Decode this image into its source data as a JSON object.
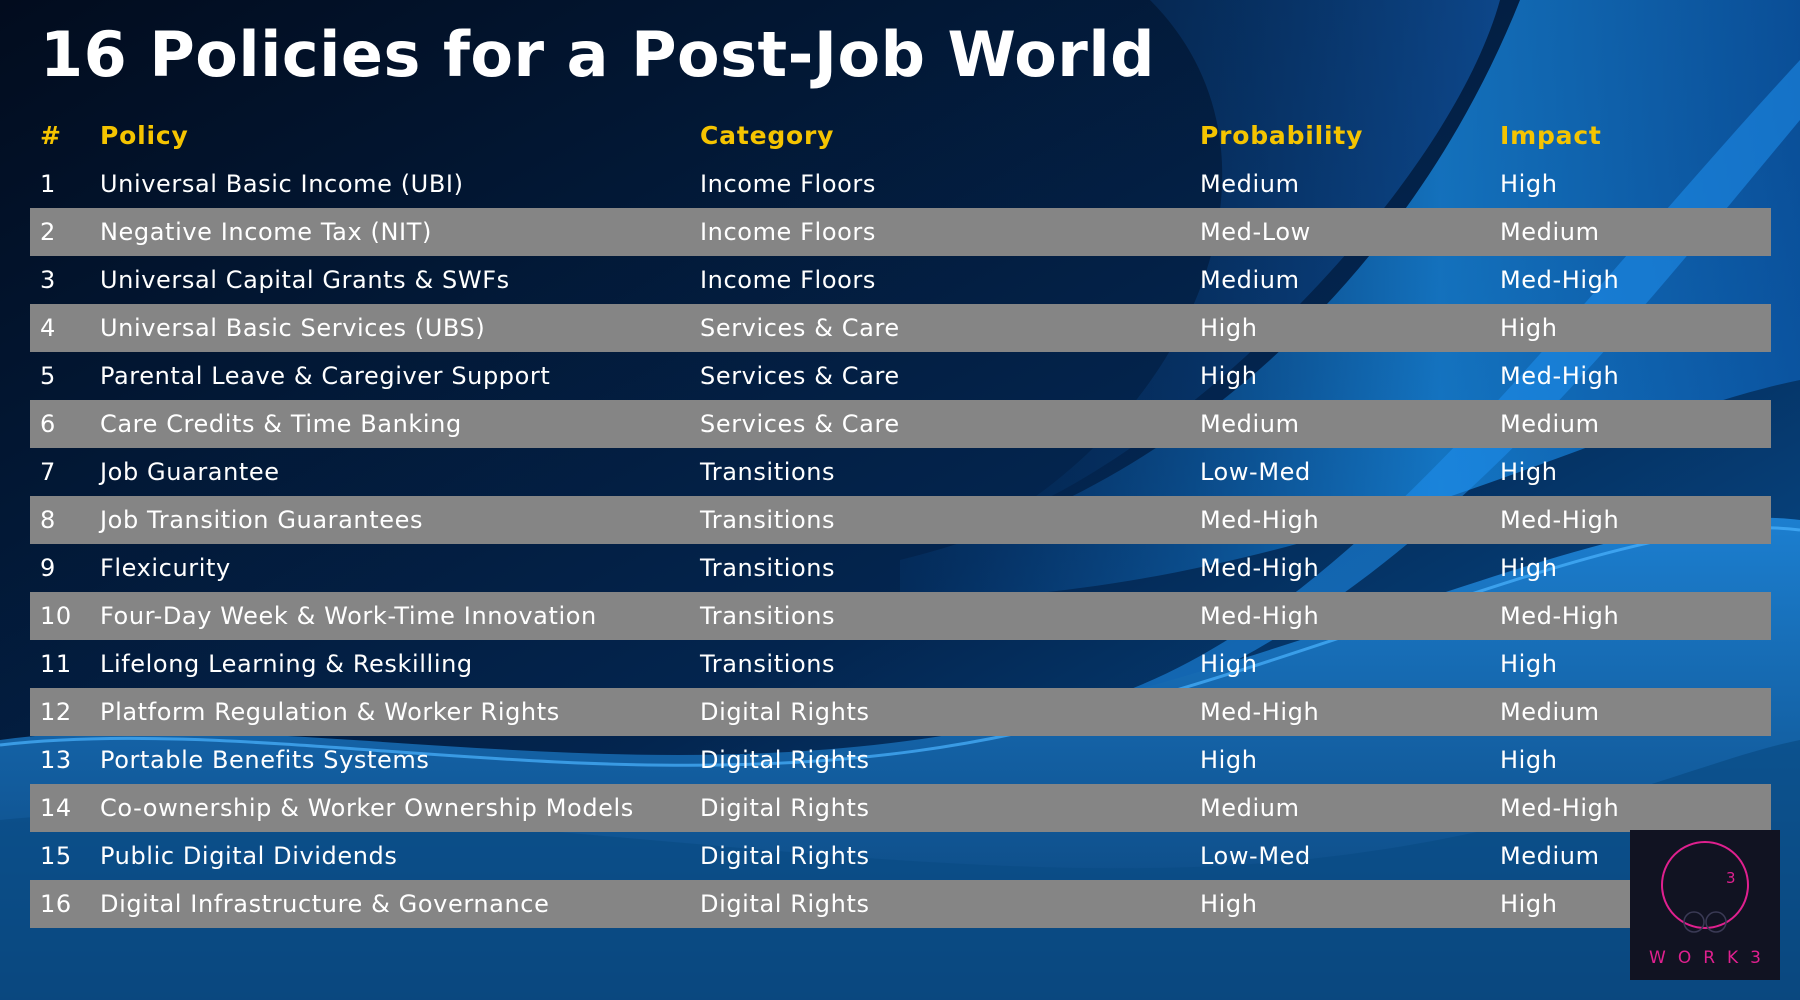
{
  "title": "16 Policies for a Post-Job World",
  "colors": {
    "header": "#f5c400",
    "row_alt": "#858585",
    "text": "#ffffff",
    "logo_accent": "#e0208f"
  },
  "table": {
    "headers": {
      "num": "#",
      "policy": "Policy",
      "category": "Category",
      "probability": "Probability",
      "impact": "Impact"
    },
    "rows": [
      {
        "num": "1",
        "policy": "Universal Basic Income (UBI)",
        "category": "Income Floors",
        "probability": "Medium",
        "impact": "High"
      },
      {
        "num": "2",
        "policy": "Negative Income Tax (NIT)",
        "category": "Income Floors",
        "probability": "Med-Low",
        "impact": "Medium"
      },
      {
        "num": "3",
        "policy": "Universal Capital Grants & SWFs",
        "category": "Income Floors",
        "probability": "Medium",
        "impact": "Med-High"
      },
      {
        "num": "4",
        "policy": "Universal Basic Services (UBS)",
        "category": "Services & Care",
        "probability": "High",
        "impact": "High"
      },
      {
        "num": "5",
        "policy": "Parental Leave & Caregiver Support",
        "category": "Services & Care",
        "probability": "High",
        "impact": "Med-High"
      },
      {
        "num": "6",
        "policy": "Care Credits & Time Banking",
        "category": "Services & Care",
        "probability": "Medium",
        "impact": "Medium"
      },
      {
        "num": "7",
        "policy": "Job Guarantee",
        "category": "Transitions",
        "probability": "Low-Med",
        "impact": "High"
      },
      {
        "num": "8",
        "policy": "Job Transition Guarantees",
        "category": "Transitions",
        "probability": "Med-High",
        "impact": "Med-High"
      },
      {
        "num": "9",
        "policy": "Flexicurity",
        "category": "Transitions",
        "probability": "Med-High",
        "impact": "High"
      },
      {
        "num": "10",
        "policy": "Four-Day Week & Work-Time Innovation",
        "category": "Transitions",
        "probability": "Med-High",
        "impact": "Med-High"
      },
      {
        "num": "11",
        "policy": "Lifelong Learning & Reskilling",
        "category": "Transitions",
        "probability": "High",
        "impact": "High"
      },
      {
        "num": "12",
        "policy": "Platform Regulation & Worker Rights",
        "category": "Digital Rights",
        "probability": "Med-High",
        "impact": "Medium"
      },
      {
        "num": "13",
        "policy": "Portable Benefits Systems",
        "category": "Digital Rights",
        "probability": "High",
        "impact": "High"
      },
      {
        "num": "14",
        "policy": "Co-ownership & Worker Ownership Models",
        "category": "Digital Rights",
        "probability": "Medium",
        "impact": "Med-High"
      },
      {
        "num": "15",
        "policy": "Public Digital Dividends",
        "category": "Digital Rights",
        "probability": "Low-Med",
        "impact": "Medium"
      },
      {
        "num": "16",
        "policy": "Digital Infrastructure & Governance",
        "category": "Digital Rights",
        "probability": "High",
        "impact": "High"
      }
    ]
  },
  "logo": {
    "text": "WORK3",
    "superscript": "3",
    "icon": "work3-logo-icon"
  }
}
